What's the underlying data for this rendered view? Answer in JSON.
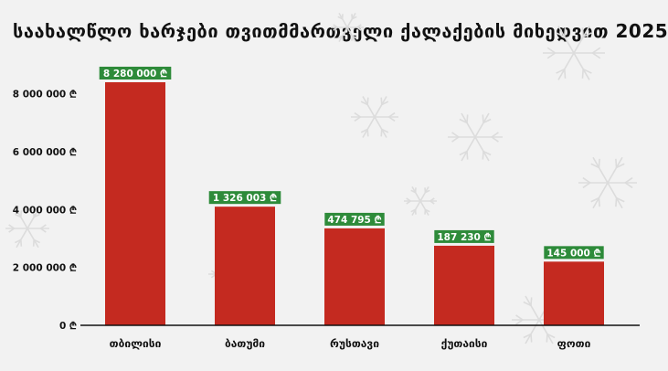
{
  "chart_data": {
    "type": "bar",
    "title": "საახალწლო ხარჯები თვითმმართველი ქალაქების მიხედვით 2025",
    "categories": [
      "თბილისი",
      "ბათუმი",
      "რუსთავი",
      "ქუთაისი",
      "ფოთი"
    ],
    "values": [
      8280000,
      1326003,
      474795,
      187230,
      145000
    ],
    "value_labels": [
      "8 280 000 ₾",
      "1 326 003 ₾",
      "474 795 ₾",
      "187 230 ₾",
      "145 000 ₾"
    ],
    "display_heights": [
      8400000,
      4100000,
      3350000,
      2750000,
      2200000
    ],
    "y_ticks": [
      0,
      2000000,
      4000000,
      6000000,
      8000000
    ],
    "y_tick_labels": [
      "0 ₾",
      "2 000 000 ₾",
      "4 000 000 ₾",
      "6 000 000 ₾",
      "8 000 000 ₾"
    ],
    "ylim": [
      0,
      8400000
    ],
    "xlabel": "",
    "ylabel": "",
    "grid": false,
    "legend": "none",
    "colors": {
      "bar": "#c42a20",
      "label_bg": "#2e8b3a",
      "label_text": "#ffffff",
      "axis": "#111111",
      "background": "#f2f2f2",
      "decor": "#dcdcdc"
    }
  }
}
